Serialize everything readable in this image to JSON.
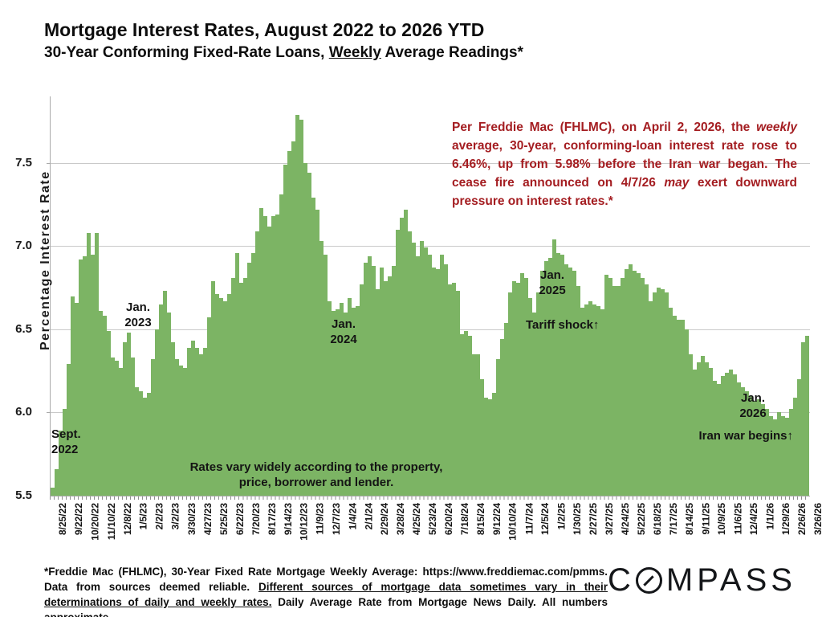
{
  "header": {
    "title": "Mortgage Interest Rates, August 2022 to 2026 YTD",
    "subtitle_part1": "30-Year Conforming Fixed-Rate Loans, ",
    "subtitle_underlined": "Weekly",
    "subtitle_part2": " Average Readings*"
  },
  "chart_data": {
    "type": "bar",
    "title": "Mortgage Interest Rates, August 2022 to 2026 YTD",
    "xlabel": "",
    "ylabel": "Percentage Interest  Rate",
    "ylim": [
      5.5,
      7.9
    ],
    "yticks": [
      7.5,
      7.0,
      6.5,
      6.0,
      5.5
    ],
    "grid": true,
    "bar_color": "#7cb464",
    "tick_every": 4,
    "x_tick_labels": [
      "8/25/22",
      "9/22/22",
      "10/20/22",
      "11/10/22",
      "12/8/22",
      "1/5/23",
      "2/2/23",
      "3/2/23",
      "3/30/23",
      "4/27/23",
      "5/25/23",
      "6/22/23",
      "7/20/23",
      "8/17/23",
      "9/14/23",
      "10/12/23",
      "11/9/23",
      "12/7/23",
      "1/4/24",
      "2/1/24",
      "2/29/24",
      "3/28/24",
      "4/25/24",
      "5/23/24",
      "6/20/24",
      "7/18/24",
      "8/15/24",
      "9/12/24",
      "10/10/24",
      "11/7/24",
      "12/5/24",
      "1/2/25",
      "1/30/25",
      "2/27/25",
      "3/27/25",
      "4/24/25",
      "5/22/25",
      "6/18/25",
      "7/17/25",
      "8/14/25",
      "9/11/25",
      "10/9/25",
      "11/6/25",
      "12/4/25",
      "1/1/26",
      "1/29/26",
      "2/26/26",
      "3/26/26"
    ],
    "values": [
      5.55,
      5.66,
      5.89,
      6.02,
      6.29,
      6.7,
      6.66,
      6.92,
      6.94,
      7.08,
      6.95,
      7.08,
      6.61,
      6.58,
      6.49,
      6.33,
      6.31,
      6.27,
      6.42,
      6.48,
      6.33,
      6.15,
      6.13,
      6.09,
      6.12,
      6.32,
      6.5,
      6.65,
      6.73,
      6.6,
      6.42,
      6.32,
      6.28,
      6.27,
      6.39,
      6.43,
      6.39,
      6.35,
      6.39,
      6.57,
      6.79,
      6.71,
      6.69,
      6.67,
      6.71,
      6.81,
      6.96,
      6.78,
      6.81,
      6.9,
      6.96,
      7.09,
      7.23,
      7.18,
      7.12,
      7.18,
      7.19,
      7.31,
      7.49,
      7.57,
      7.63,
      7.79,
      7.76,
      7.5,
      7.44,
      7.29,
      7.22,
      7.03,
      6.95,
      6.67,
      6.61,
      6.62,
      6.66,
      6.6,
      6.69,
      6.63,
      6.64,
      6.77,
      6.9,
      6.94,
      6.88,
      6.74,
      6.87,
      6.79,
      6.82,
      6.88,
      7.1,
      7.17,
      7.22,
      7.09,
      7.02,
      6.94,
      7.03,
      6.99,
      6.95,
      6.87,
      6.86,
      6.95,
      6.89,
      6.77,
      6.78,
      6.73,
      6.47,
      6.49,
      6.46,
      6.35,
      6.35,
      6.2,
      6.09,
      6.08,
      6.12,
      6.32,
      6.44,
      6.54,
      6.72,
      6.79,
      6.78,
      6.84,
      6.81,
      6.69,
      6.6,
      6.72,
      6.85,
      6.91,
      6.93,
      7.04,
      6.96,
      6.95,
      6.89,
      6.87,
      6.85,
      6.76,
      6.63,
      6.65,
      6.67,
      6.65,
      6.64,
      6.62,
      6.83,
      6.81,
      6.76,
      6.76,
      6.81,
      6.86,
      6.89,
      6.85,
      6.84,
      6.81,
      6.77,
      6.67,
      6.72,
      6.75,
      6.74,
      6.72,
      6.63,
      6.58,
      6.56,
      6.56,
      6.5,
      6.35,
      6.26,
      6.3,
      6.34,
      6.3,
      6.27,
      6.19,
      6.17,
      6.22,
      6.24,
      6.26,
      6.23,
      6.18,
      6.15,
      6.13,
      6.1,
      6.07,
      6.08,
      6.05,
      6.02,
      5.98,
      5.96,
      6.0,
      5.98,
      5.97,
      6.02,
      6.09,
      6.2,
      6.42,
      6.46
    ]
  },
  "annotations": [
    {
      "id": "sept-2022",
      "text": "Sept.\n2022"
    },
    {
      "id": "jan-2023",
      "text": "Jan.\n2023"
    },
    {
      "id": "jan-2024",
      "text": "Jan.\n2024"
    },
    {
      "id": "jan-2025",
      "text": "Jan.\n2025"
    },
    {
      "id": "tariff-shock",
      "text": "Tariff shock↑"
    },
    {
      "id": "jan-2026",
      "text": "Jan.\n2026"
    },
    {
      "id": "iran-war",
      "text": "Iran war begins↑"
    },
    {
      "id": "rates-vary",
      "text": "Rates vary widely according to the property,\nprice, borrower and lender."
    }
  ],
  "callout": {
    "color": "#a41d21",
    "part1": "Per Freddie Mac (FHLMC), on April 2, 2026, the ",
    "italic1": "weekly",
    "part2": " average, 30-year, conforming-loan interest rate rose to 6.46%, up from 5.98% before the Iran war began. The cease fire announced on 4/7/26 ",
    "italic2": "may",
    "part3": " exert downward pressure on interest rates.*"
  },
  "footnote": {
    "part1": "*Freddie Mac (FHLMC), 30-Year Fixed Rate Mortgage Weekly Average:  https://www.freddiemac.com/pmms. Data from sources deemed reliable. ",
    "underlined": "Different sources of mortgage data sometimes vary in their determinations of daily and weekly rates.",
    "part2": " Daily Average Rate from Mortgage News Daily. All numbers approximate."
  },
  "logo": {
    "name": "COMPASS",
    "part1": "C",
    "part2": "MPASS"
  }
}
